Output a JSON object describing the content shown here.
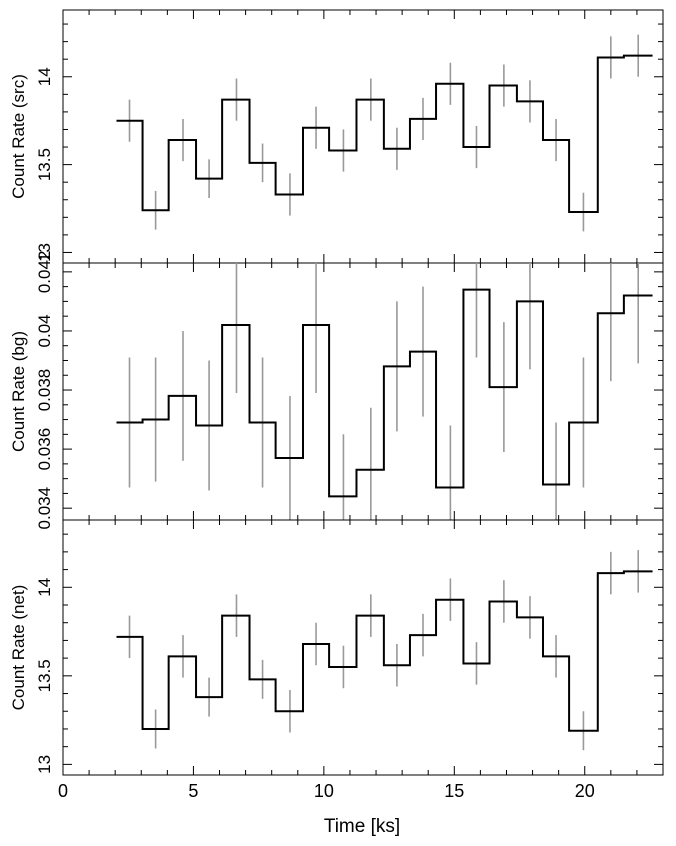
{
  "chart_data": [
    {
      "type": "line",
      "panel": "src",
      "ylabel": "Count Rate (src)",
      "ylim": [
        12.94,
        14.38
      ],
      "yticks_major": [
        13,
        13.5,
        14
      ],
      "ytick_labels": [
        "13",
        "13.5",
        "14"
      ],
      "yminor_step": 0.1,
      "xlim": [
        0,
        23
      ],
      "x": [
        2.55,
        3.55,
        4.6,
        5.6,
        6.65,
        7.65,
        8.7,
        9.7,
        10.75,
        11.8,
        12.8,
        13.8,
        14.85,
        15.85,
        16.9,
        17.9,
        18.9,
        19.95,
        21.0,
        22.05
      ],
      "values": [
        13.75,
        13.24,
        13.64,
        13.42,
        13.87,
        13.51,
        13.33,
        13.71,
        13.58,
        13.87,
        13.59,
        13.76,
        13.96,
        13.6,
        13.95,
        13.86,
        13.64,
        13.23,
        14.11,
        14.12
      ],
      "errors": [
        0.12,
        0.11,
        0.12,
        0.11,
        0.12,
        0.11,
        0.12,
        0.12,
        0.12,
        0.12,
        0.12,
        0.12,
        0.12,
        0.12,
        0.12,
        0.12,
        0.12,
        0.11,
        0.12,
        0.12
      ]
    },
    {
      "type": "line",
      "panel": "bg",
      "ylabel": "Count Rate (bg)",
      "ylim": [
        0.0336,
        0.0423
      ],
      "yticks_major": [
        0.034,
        0.036,
        0.038,
        0.04,
        0.042
      ],
      "ytick_labels": [
        "0.034",
        "0.036",
        "0.038",
        "0.04",
        "0.042"
      ],
      "yminor_step": 0.0005,
      "xlim": [
        0,
        23
      ],
      "x": [
        2.55,
        3.55,
        4.6,
        5.6,
        6.65,
        7.65,
        8.7,
        9.7,
        10.75,
        11.8,
        12.8,
        13.8,
        14.85,
        15.85,
        16.9,
        17.9,
        18.9,
        19.95,
        21.0,
        22.05
      ],
      "values": [
        0.0369,
        0.037,
        0.0378,
        0.0368,
        0.0402,
        0.0369,
        0.0357,
        0.0402,
        0.0344,
        0.0353,
        0.0388,
        0.0393,
        0.0347,
        0.0414,
        0.0381,
        0.041,
        0.0348,
        0.0369,
        0.0406,
        0.0412
      ],
      "errors": [
        0.0022,
        0.0021,
        0.0022,
        0.0022,
        0.0023,
        0.0022,
        0.0021,
        0.0023,
        0.0021,
        0.0021,
        0.0022,
        0.0022,
        0.0021,
        0.0023,
        0.0022,
        0.0023,
        0.0021,
        0.0022,
        0.0023,
        0.0023
      ]
    },
    {
      "type": "line",
      "panel": "net",
      "ylabel": "Count Rate (net)",
      "ylim": [
        12.94,
        14.38
      ],
      "yticks_major": [
        13,
        13.5,
        14
      ],
      "ytick_labels": [
        "13",
        "13.5",
        "14"
      ],
      "yminor_step": 0.1,
      "xlim": [
        0,
        23
      ],
      "x": [
        2.55,
        3.55,
        4.6,
        5.6,
        6.65,
        7.65,
        8.7,
        9.7,
        10.75,
        11.8,
        12.8,
        13.8,
        14.85,
        15.85,
        16.9,
        17.9,
        18.9,
        19.95,
        21.0,
        22.05
      ],
      "values": [
        13.72,
        13.2,
        13.61,
        13.38,
        13.84,
        13.48,
        13.3,
        13.68,
        13.55,
        13.84,
        13.56,
        13.73,
        13.93,
        13.57,
        13.92,
        13.83,
        13.61,
        13.19,
        14.08,
        14.09
      ],
      "errors": [
        0.12,
        0.11,
        0.12,
        0.11,
        0.12,
        0.11,
        0.12,
        0.12,
        0.12,
        0.12,
        0.12,
        0.12,
        0.12,
        0.12,
        0.12,
        0.12,
        0.12,
        0.11,
        0.12,
        0.12
      ]
    }
  ],
  "x_axis": {
    "xlabel": "Time [ks]",
    "xticks_major": [
      0,
      5,
      10,
      15,
      20
    ],
    "xtick_labels": [
      "0",
      "5",
      "10",
      "15",
      "20"
    ],
    "xminor_step": 1
  },
  "bin_edges": [
    2.05,
    3.05,
    4.05,
    5.1,
    6.1,
    7.15,
    8.15,
    9.2,
    10.2,
    11.25,
    12.3,
    13.3,
    14.3,
    15.35,
    16.35,
    17.4,
    18.4,
    19.4,
    20.5,
    21.5,
    22.6
  ],
  "colors": {
    "step": "#000000",
    "errorbar": "#999999",
    "axis": "#000000"
  }
}
